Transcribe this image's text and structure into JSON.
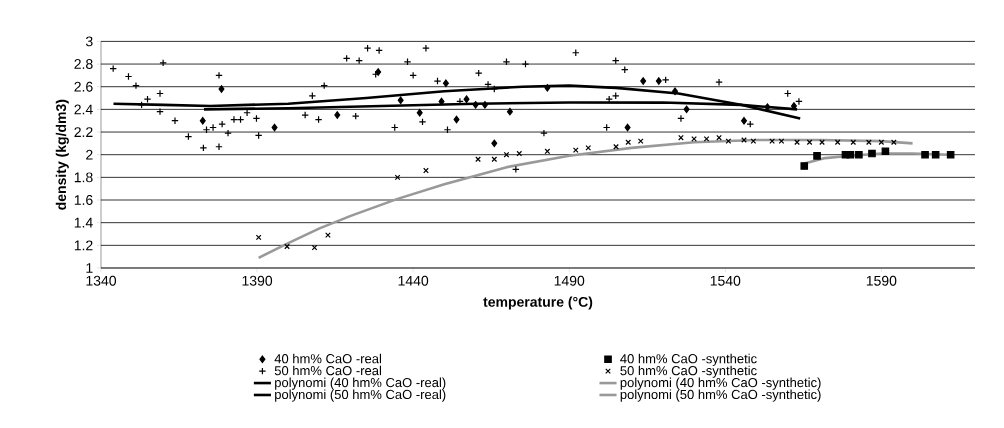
{
  "chart_data": {
    "type": "scatter",
    "xlabel": "temperature (°C)",
    "ylabel": "density (kg/dm3)",
    "xlim": [
      1340,
      1620
    ],
    "xticks": [
      1340,
      1390,
      1440,
      1490,
      1540,
      1590
    ],
    "ylim": [
      1,
      3
    ],
    "yticks": [
      1,
      1.2,
      1.4,
      1.6,
      1.8,
      2,
      2.2,
      2.4,
      2.6,
      2.8,
      3
    ],
    "grid": "y",
    "legend": "bottom",
    "series": [
      {
        "name": "40 hm% CaO -real",
        "marker": "diamond",
        "color": "#000000",
        "x": [
          1372.6,
          1378.6,
          1395.6,
          1415.7,
          1428.8,
          1436,
          1442.1,
          1449.1,
          1450.5,
          1453.9,
          1457.1,
          1460,
          1463,
          1466,
          1471,
          1483,
          1508.7,
          1513.7,
          1518.7,
          1523.9,
          1527.6,
          1546,
          1553.5,
          1562
        ],
        "values": [
          2.3,
          2.58,
          2.24,
          2.35,
          2.73,
          2.48,
          2.37,
          2.47,
          2.63,
          2.31,
          2.49,
          2.44,
          2.44,
          2.1,
          2.38,
          2.59,
          2.24,
          2.65,
          2.65,
          2.56,
          2.4,
          2.3,
          2.42,
          2.43
        ]
      },
      {
        "name": "40 hm% CaO -synthetic",
        "marker": "square",
        "color": "#000000",
        "x": [
          1565.3,
          1569.4,
          1578.5,
          1580.1,
          1582.8,
          1587,
          1591.3,
          1604,
          1607.4,
          1612.2
        ],
        "values": [
          1.9,
          1.99,
          2,
          2,
          2,
          2.01,
          2.03,
          2,
          2,
          2
        ]
      },
      {
        "name": "50 hm% CaO -real",
        "color": "#000000",
        "x": [
          1343.9,
          1348.8,
          1351.2,
          1353,
          1354.9,
          1359.9,
          1358.9,
          1358.9,
          1363.7,
          1368,
          1372.8,
          1373.8,
          1375.9,
          1377.8,
          1377.8,
          1378.8,
          1380.7,
          1382.6,
          1384.7,
          1386.8,
          1389.8,
          1390.5,
          1405.4,
          1407.7,
          1409.7,
          1411.5,
          1418.7,
          1421.6,
          1422.7,
          1425.4,
          1429.1,
          1428,
          1438.2,
          1440,
          1444.1,
          1434.1,
          1443,
          1447.8,
          1451,
          1455,
          1461,
          1464,
          1466,
          1469.9,
          1476,
          1472.9,
          1481.9,
          1492.1,
          1502.8,
          1504.9,
          1504.9,
          1507.8,
          1502,
          1520.9,
          1525.8,
          1538,
          1548,
          1560,
          1563.6
        ],
        "values": [
          2.76,
          2.69,
          2.61,
          2.44,
          2.49,
          2.81,
          2.54,
          2.38,
          2.3,
          2.16,
          2.06,
          2.22,
          2.24,
          2.7,
          2.07,
          2.27,
          2.19,
          2.31,
          2.31,
          2.37,
          2.32,
          2.17,
          2.35,
          2.52,
          2.31,
          2.61,
          2.85,
          2.34,
          2.83,
          2.94,
          2.92,
          2.71,
          2.82,
          2.7,
          2.94,
          2.24,
          2.29,
          2.65,
          2.22,
          2.47,
          2.72,
          2.62,
          2.58,
          2.82,
          2.8,
          1.87,
          2.19,
          2.9,
          2.49,
          2.52,
          2.83,
          2.75,
          2.24,
          2.66,
          2.32,
          2.64,
          2.27,
          2.54,
          2.47
        ]
      },
      {
        "name": "50 hm% CaO -synthetic",
        "marker": "cross",
        "color": "#000000",
        "x": [
          1390.5,
          1399.6,
          1408.4,
          1412.7,
          1435,
          1444.1,
          1460.8,
          1466,
          1469.9,
          1474,
          1483,
          1492.1,
          1496.1,
          1505,
          1508.9,
          1512.9,
          1525.8,
          1530,
          1534,
          1538,
          1541,
          1546,
          1549,
          1555,
          1558,
          1563,
          1567,
          1571,
          1576,
          1581,
          1586,
          1590,
          1594
        ],
        "values": [
          1.27,
          1.19,
          1.18,
          1.29,
          1.8,
          1.86,
          1.96,
          1.96,
          2,
          2.01,
          2.03,
          2.04,
          2.06,
          2.07,
          2.11,
          2.12,
          2.15,
          2.14,
          2.14,
          2.15,
          2.12,
          2.13,
          2.12,
          2.12,
          2.12,
          2.11,
          2.11,
          2.11,
          2.11,
          2.11,
          2.11,
          2.11,
          2.11
        ]
      },
      {
        "name": "polynomi (40 hm% CaO -real)",
        "type": "line",
        "color": "#000000",
        "x": [
          1373,
          1400,
          1430,
          1460,
          1490,
          1520,
          1545,
          1563
        ],
        "values": [
          2.4,
          2.41,
          2.43,
          2.45,
          2.46,
          2.46,
          2.44,
          2.4
        ]
      },
      {
        "name": "polynomi (40 hm% CaO -synthetic)",
        "type": "line",
        "color": "#999999",
        "x": [
          1565,
          1572,
          1580,
          1590,
          1600,
          1612
        ],
        "values": [
          1.92,
          1.97,
          1.99,
          2.01,
          2.01,
          2
        ]
      },
      {
        "name": "polynomi (50 hm% CaO -real)",
        "type": "line",
        "color": "#000000",
        "x": [
          1344,
          1360,
          1375,
          1400,
          1425,
          1450,
          1475,
          1490,
          1505,
          1525,
          1545,
          1564
        ],
        "values": [
          2.45,
          2.44,
          2.43,
          2.45,
          2.5,
          2.56,
          2.6,
          2.61,
          2.59,
          2.54,
          2.44,
          2.32
        ]
      },
      {
        "name": "polynomi (50 hm% CaO -synthetic)",
        "type": "line",
        "color": "#999999",
        "x": [
          1390.5,
          1400,
          1410,
          1420,
          1435,
          1450,
          1470,
          1490,
          1510,
          1530,
          1550,
          1570,
          1590,
          1600
        ],
        "values": [
          1.09,
          1.22,
          1.35,
          1.46,
          1.61,
          1.74,
          1.89,
          1.99,
          2.06,
          2.11,
          2.13,
          2.13,
          2.12,
          2.1
        ]
      }
    ]
  }
}
